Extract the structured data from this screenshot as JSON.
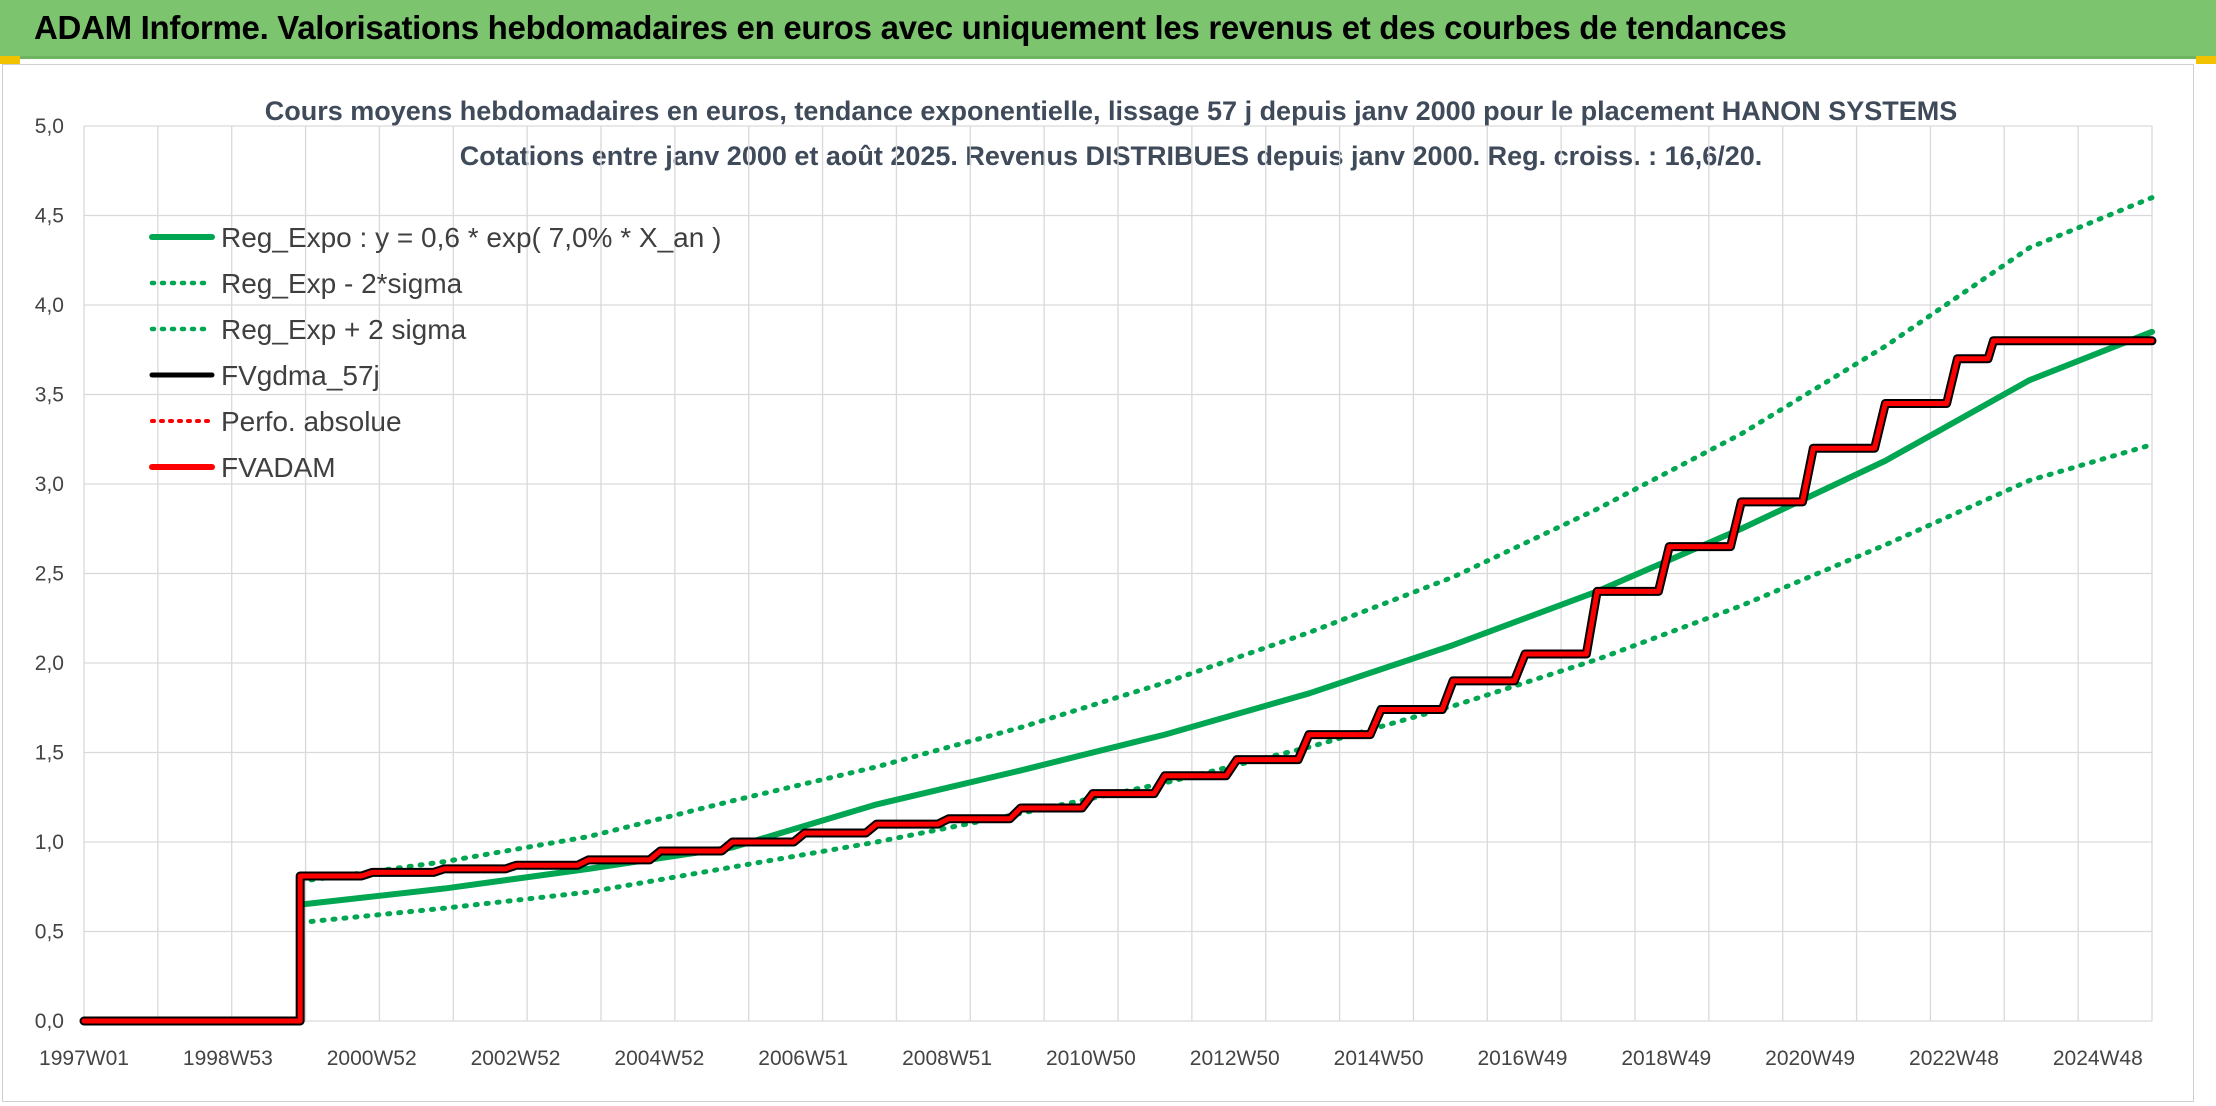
{
  "header": {
    "title": "ADAM Informe. Valorisations hebdomadaires en euros avec uniquement les revenus et des courbes de tendances"
  },
  "colors": {
    "green": "#00a651",
    "black": "#000000",
    "red": "#ff0000",
    "banner": "#7dc46f"
  },
  "chart_data": {
    "type": "line",
    "title": "Cours moyens hebdomadaires en euros, tendance exponentielle, lissage 57 j depuis janv 2000 pour le placement HANON SYSTEMS",
    "subtitle": "Cotations entre janv 2000 et août 2025. Revenus DISTRIBUES depuis janv 2000. Reg. croiss. : 16,6/20.",
    "xlabel": "",
    "ylabel": "",
    "xlim": [
      1997.0,
      2025.7
    ],
    "ylim": [
      0,
      5
    ],
    "y_ticks": [
      "0,0",
      "0,5",
      "1,0",
      "1,5",
      "2,0",
      "2,5",
      "3,0",
      "3,5",
      "4,0",
      "4,5",
      "5,0"
    ],
    "x_ticks": [
      "1997W01",
      "1998W53",
      "2000W52",
      "2002W52",
      "2004W52",
      "2006W51",
      "2008W51",
      "2010W50",
      "2012W50",
      "2014W50",
      "2016W49",
      "2018W49",
      "2020W49",
      "2022W48",
      "2024W48"
    ],
    "grid": true,
    "legend_position": "top-left",
    "legend": [
      {
        "name": "Reg_Expo : y = 0,6 * exp( 7,0% *  X_an )",
        "style": "solid",
        "color": "#00a651"
      },
      {
        "name": "Reg_Exp - 2*sigma",
        "style": "dotted",
        "color": "#00a651"
      },
      {
        "name": "Reg_Exp + 2 sigma",
        "style": "dotted",
        "color": "#00a651"
      },
      {
        "name": "FVgdma_57j",
        "style": "solid",
        "color": "#000000"
      },
      {
        "name": "Perfo. absolue",
        "style": "dotted",
        "color": "#ff0000"
      },
      {
        "name": "FVADAM",
        "style": "solid",
        "color": "#ff0000"
      }
    ],
    "series": [
      {
        "name": "Reg_Expo : y = 0,6 * exp( 7,0% *  X_an )",
        "x": [
          2000.0,
          2002.0,
          2004.0,
          2006.0,
          2008.0,
          2010.0,
          2012.0,
          2014.0,
          2016.0,
          2018.0,
          2020.0,
          2022.0,
          2024.0,
          2025.7
        ],
        "y": [
          0.65,
          0.74,
          0.85,
          0.97,
          1.21,
          1.4,
          1.6,
          1.83,
          2.1,
          2.4,
          2.75,
          3.13,
          3.58,
          3.85
        ]
      },
      {
        "name": "Reg_Exp - 2*sigma",
        "x": [
          2000.0,
          2002.0,
          2004.0,
          2006.0,
          2008.0,
          2010.0,
          2012.0,
          2014.0,
          2016.0,
          2018.0,
          2020.0,
          2022.0,
          2024.0,
          2025.7
        ],
        "y": [
          0.55,
          0.63,
          0.72,
          0.86,
          1.0,
          1.16,
          1.33,
          1.53,
          1.76,
          2.02,
          2.32,
          2.66,
          3.02,
          3.22
        ]
      },
      {
        "name": "Reg_Exp + 2 sigma",
        "x": [
          2000.0,
          2002.0,
          2004.0,
          2006.0,
          2008.0,
          2010.0,
          2012.0,
          2014.0,
          2016.0,
          2018.0,
          2020.0,
          2022.0,
          2024.0,
          2025.7
        ],
        "y": [
          0.78,
          0.89,
          1.03,
          1.23,
          1.42,
          1.64,
          1.89,
          2.17,
          2.48,
          2.86,
          3.28,
          3.77,
          4.32,
          4.6
        ]
      },
      {
        "name": "FVgdma_57j",
        "x": [
          1997.0,
          2000.0,
          2000.0,
          2001.0,
          2002.0,
          2003.0,
          2004.0,
          2005.0,
          2006.0,
          2007.0,
          2008.0,
          2009.0,
          2010.0,
          2011.0,
          2012.0,
          2013.0,
          2014.0,
          2015.0,
          2016.0,
          2017.0,
          2018.0,
          2019.0,
          2020.0,
          2021.0,
          2022.0,
          2023.0,
          2023.5,
          2025.7
        ],
        "y": [
          0.0,
          0.0,
          0.81,
          0.83,
          0.85,
          0.87,
          0.9,
          0.95,
          1.0,
          1.05,
          1.1,
          1.13,
          1.19,
          1.27,
          1.37,
          1.46,
          1.6,
          1.74,
          1.9,
          2.05,
          2.4,
          2.65,
          2.9,
          3.2,
          3.45,
          3.7,
          3.8,
          3.8
        ]
      },
      {
        "name": "FVADAM",
        "x": [
          1997.0,
          2000.0,
          2000.0,
          2001.0,
          2002.0,
          2003.0,
          2004.0,
          2005.0,
          2006.0,
          2007.0,
          2008.0,
          2009.0,
          2010.0,
          2011.0,
          2012.0,
          2013.0,
          2014.0,
          2015.0,
          2016.0,
          2017.0,
          2018.0,
          2019.0,
          2020.0,
          2021.0,
          2022.0,
          2023.0,
          2023.5,
          2025.7
        ],
        "y": [
          0.0,
          0.0,
          0.81,
          0.83,
          0.85,
          0.87,
          0.9,
          0.95,
          1.0,
          1.05,
          1.1,
          1.13,
          1.19,
          1.27,
          1.37,
          1.46,
          1.6,
          1.74,
          1.9,
          2.05,
          2.4,
          2.65,
          2.9,
          3.2,
          3.45,
          3.7,
          3.8,
          3.8
        ]
      }
    ]
  }
}
